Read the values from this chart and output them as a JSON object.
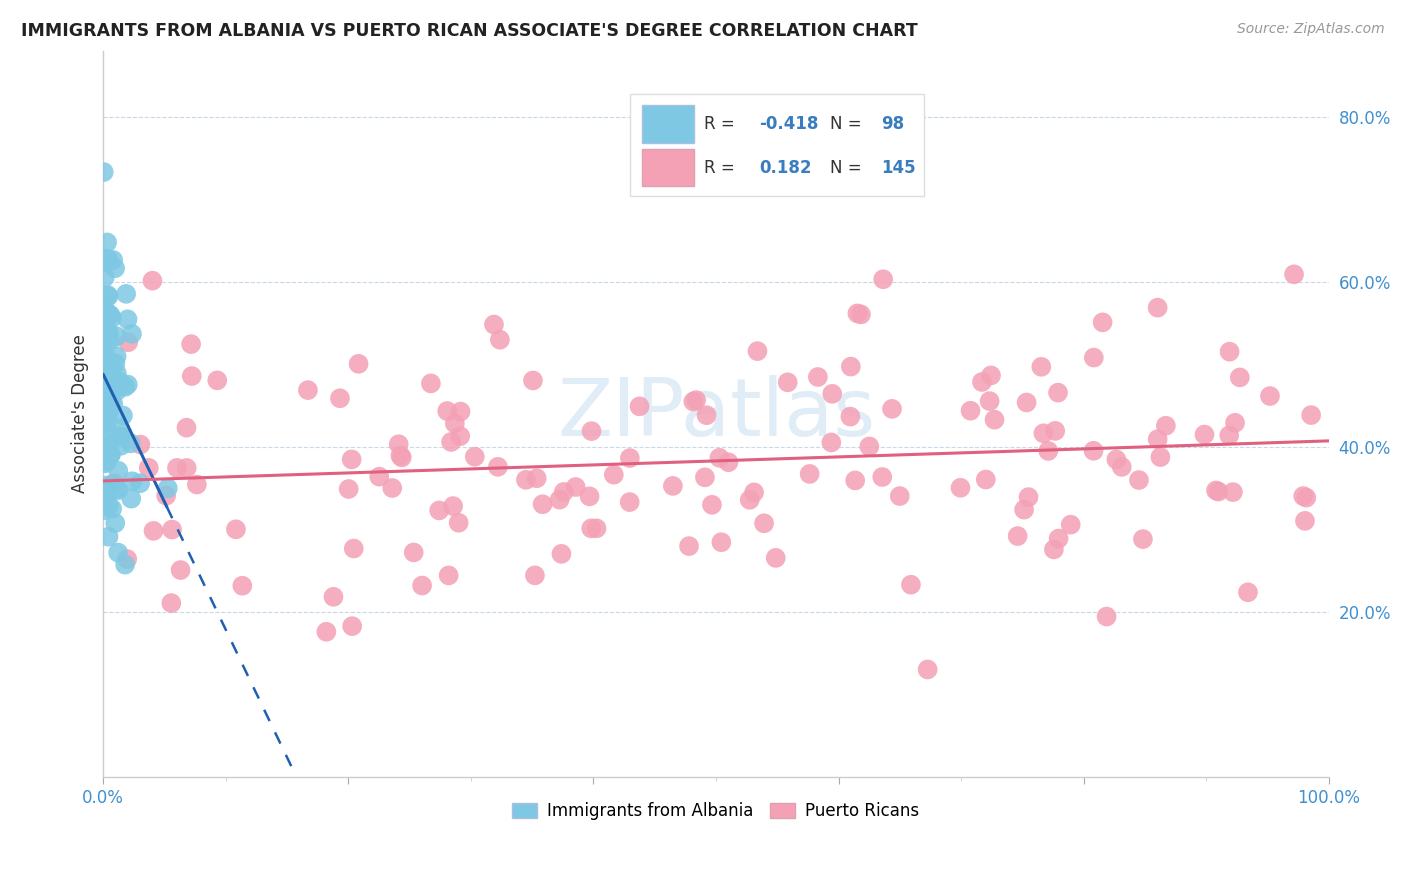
{
  "title": "IMMIGRANTS FROM ALBANIA VS PUERTO RICAN ASSOCIATE'S DEGREE CORRELATION CHART",
  "source": "Source: ZipAtlas.com",
  "ylabel": "Associate's Degree",
  "xlim": [
    0.0,
    1.0
  ],
  "ylim": [
    0.0,
    0.88
  ],
  "xticks": [
    0.0,
    0.2,
    0.4,
    0.6,
    0.8,
    1.0
  ],
  "xtick_labels": [
    "0.0%",
    "",
    "",
    "",
    "",
    "100.0%"
  ],
  "yticks": [
    0.2,
    0.4,
    0.6,
    0.8
  ],
  "ytick_labels": [
    "20.0%",
    "40.0%",
    "60.0%",
    "80.0%"
  ],
  "blue_color": "#7ec8e3",
  "pink_color": "#f4a0b5",
  "blue_line_color": "#2060b0",
  "pink_line_color": "#e06080",
  "watermark": "ZIPatlas",
  "grid_color": "#c8d8e8",
  "tick_color": "#4090d0"
}
